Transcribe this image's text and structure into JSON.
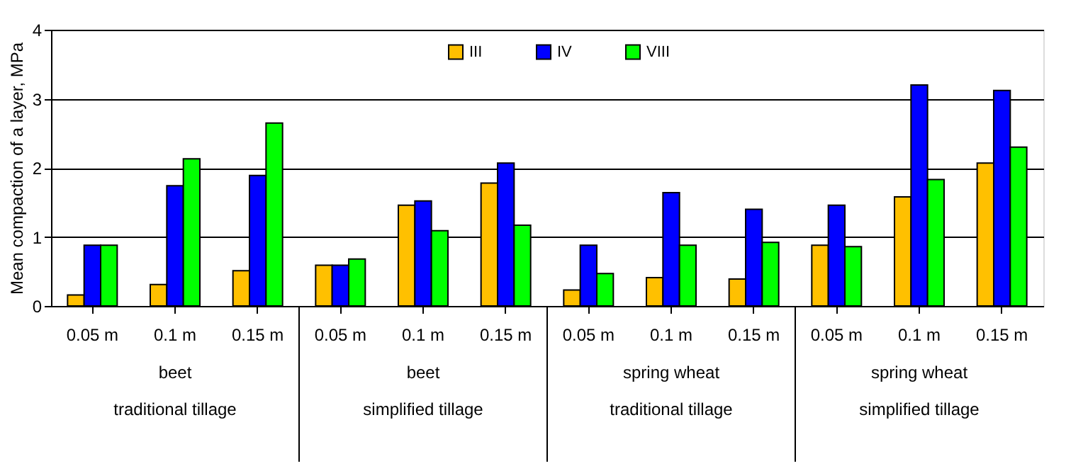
{
  "chart_data": {
    "type": "bar",
    "ylabel": "Mean compaction of a layer, MPa",
    "categories": [
      "0.05 m",
      "0.1 m",
      "0.15 m",
      "0.05 m",
      "0.1 m",
      "0.15 m",
      "0.05 m",
      "0.1 m",
      "0.15 m",
      "0.05 m",
      "0.1 m",
      "0.15 m"
    ],
    "series": [
      {
        "name": "III",
        "color": "#ffc000",
        "values": [
          0.16,
          0.31,
          0.51,
          0.59,
          1.46,
          1.78,
          0.23,
          0.41,
          0.39,
          0.88,
          1.58,
          2.07
        ]
      },
      {
        "name": "IV",
        "color": "#0000ff",
        "values": [
          0.88,
          1.74,
          1.89,
          0.59,
          1.52,
          2.07,
          0.88,
          1.64,
          1.4,
          1.46,
          3.2,
          3.12
        ]
      },
      {
        "name": "VIII",
        "color": "#00ff00",
        "values": [
          0.88,
          2.13,
          2.65,
          0.68,
          1.09,
          1.17,
          0.47,
          0.88,
          0.92,
          0.86,
          1.83,
          2.3
        ]
      }
    ],
    "annotations": [
      "beet\ntraditional tillage",
      "beet\nsimplified tillage",
      "spring wheat\ntraditional tillage",
      "spring wheat\nsimplified tillage"
    ],
    "ylim": [
      0,
      4
    ],
    "yticks": [
      0,
      1,
      2,
      3,
      4
    ],
    "grid": "y",
    "legend": "top"
  }
}
